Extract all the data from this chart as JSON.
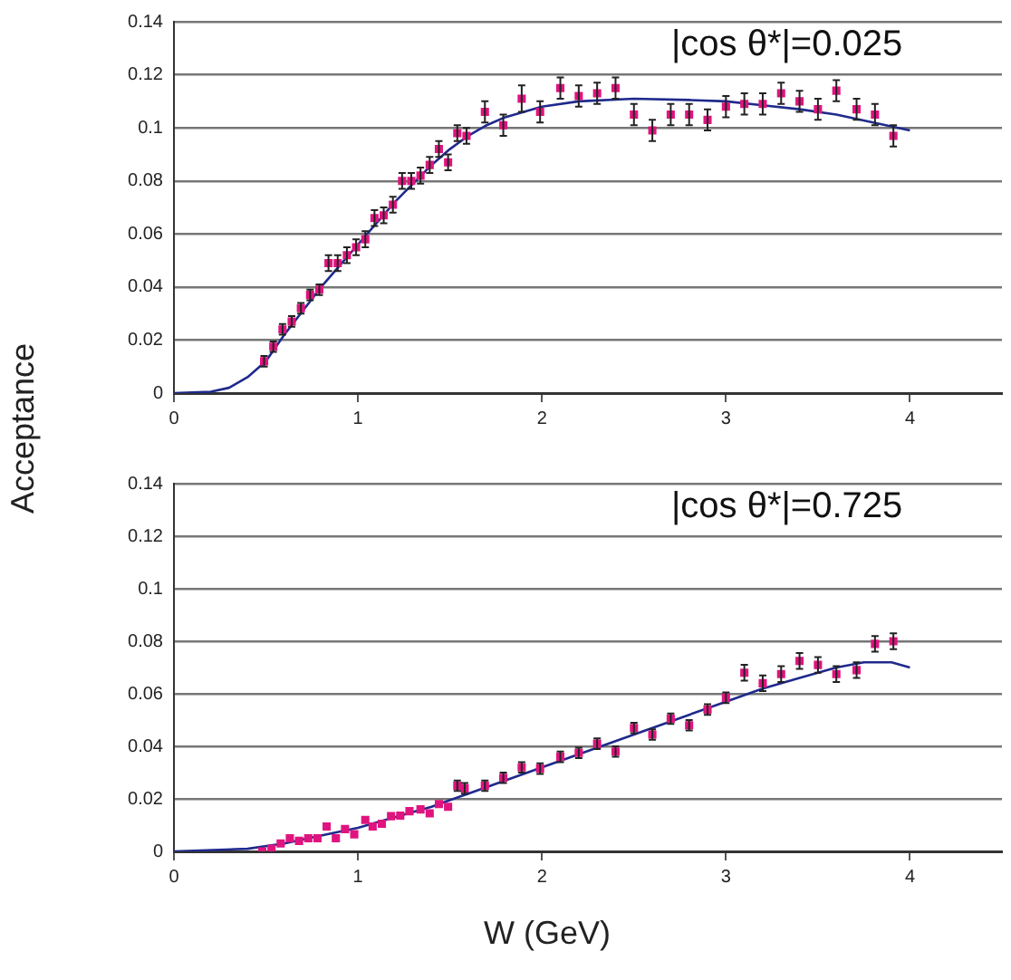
{
  "chart_data": [
    {
      "type": "scatter",
      "ylabel": "Acceptance",
      "annotations": [
        "|cos θ*|=0.025"
      ],
      "xlim": [
        0,
        4.5
      ],
      "xticks": [
        0,
        1,
        2,
        3,
        4
      ],
      "ylim": [
        0,
        0.14
      ],
      "yticks": [
        0,
        0.02,
        0.04,
        0.06,
        0.08,
        0.1,
        0.12,
        0.14
      ],
      "grid": "y",
      "legend": false,
      "marker": "square",
      "series": [
        {
          "color": "#e0147f",
          "x": [
            0.49,
            0.54,
            0.59,
            0.64,
            0.69,
            0.74,
            0.79,
            0.84,
            0.89,
            0.94,
            0.99,
            1.04,
            1.09,
            1.14,
            1.19,
            1.24,
            1.29,
            1.34,
            1.39,
            1.44,
            1.49,
            1.54,
            1.59,
            1.69,
            1.79,
            1.89,
            1.99,
            2.1,
            2.2,
            2.3,
            2.4,
            2.5,
            2.6,
            2.7,
            2.8,
            2.9,
            3.0,
            3.1,
            3.2,
            3.3,
            3.4,
            3.5,
            3.6,
            3.71,
            3.81,
            3.91
          ],
          "values": [
            0.012,
            0.0175,
            0.024,
            0.027,
            0.032,
            0.037,
            0.039,
            0.049,
            0.049,
            0.052,
            0.055,
            0.058,
            0.066,
            0.067,
            0.071,
            0.08,
            0.08,
            0.082,
            0.086,
            0.092,
            0.087,
            0.098,
            0.097,
            0.106,
            0.101,
            0.111,
            0.106,
            0.115,
            0.112,
            0.113,
            0.115,
            0.105,
            0.099,
            0.105,
            0.105,
            0.103,
            0.108,
            0.109,
            0.109,
            0.113,
            0.11,
            0.107,
            0.114,
            0.107,
            0.105,
            0.097
          ],
          "errors": [
            0.002,
            0.002,
            0.002,
            0.002,
            0.002,
            0.002,
            0.002,
            0.003,
            0.003,
            0.003,
            0.003,
            0.003,
            0.003,
            0.003,
            0.003,
            0.003,
            0.003,
            0.003,
            0.003,
            0.003,
            0.003,
            0.003,
            0.003,
            0.004,
            0.004,
            0.005,
            0.004,
            0.004,
            0.004,
            0.004,
            0.004,
            0.004,
            0.004,
            0.004,
            0.004,
            0.004,
            0.004,
            0.004,
            0.004,
            0.004,
            0.004,
            0.004,
            0.004,
            0.004,
            0.004,
            0.004
          ]
        },
        {
          "type": "line",
          "color": "#1f2a8c",
          "marker": "none",
          "line_style": "solid",
          "x": [
            0,
            0.2,
            0.3,
            0.4,
            0.5,
            0.6,
            0.7,
            0.8,
            0.9,
            1.0,
            1.1,
            1.2,
            1.3,
            1.4,
            1.5,
            1.6,
            1.7,
            1.8,
            2.0,
            2.2,
            2.5,
            2.8,
            3.0,
            3.2,
            3.4,
            3.6,
            3.8,
            4.0
          ],
          "values": [
            0,
            0.0005,
            0.002,
            0.006,
            0.012,
            0.022,
            0.031,
            0.04,
            0.048,
            0.056,
            0.064,
            0.072,
            0.079,
            0.086,
            0.092,
            0.097,
            0.101,
            0.104,
            0.108,
            0.11,
            0.111,
            0.1105,
            0.11,
            0.1085,
            0.107,
            0.105,
            0.102,
            0.099
          ]
        }
      ]
    },
    {
      "type": "scatter",
      "xlabel": "W (GeV)",
      "annotations": [
        "|cos θ*|=0.725"
      ],
      "xlim": [
        0,
        4.5
      ],
      "xticks": [
        0,
        1,
        2,
        3,
        4
      ],
      "ylim": [
        0,
        0.14
      ],
      "yticks": [
        0,
        0.02,
        0.04,
        0.06,
        0.08,
        0.1,
        0.12,
        0.14
      ],
      "grid": "y",
      "legend": false,
      "marker": "square",
      "series": [
        {
          "color": "#e0147f",
          "x": [
            0.48,
            0.53,
            0.58,
            0.63,
            0.68,
            0.73,
            0.78,
            0.83,
            0.88,
            0.93,
            0.98,
            1.04,
            1.08,
            1.13,
            1.18,
            1.23,
            1.28,
            1.34,
            1.39,
            1.44,
            1.49,
            1.54,
            1.58,
            1.69,
            1.79,
            1.89,
            1.99,
            2.1,
            2.2,
            2.3,
            2.4,
            2.5,
            2.6,
            2.7,
            2.8,
            2.9,
            3.0,
            3.1,
            3.2,
            3.3,
            3.4,
            3.5,
            3.6,
            3.71,
            3.81,
            3.91
          ],
          "values": [
            0.0,
            0.001,
            0.003,
            0.005,
            0.004,
            0.005,
            0.005,
            0.0095,
            0.005,
            0.0085,
            0.0065,
            0.012,
            0.0095,
            0.0105,
            0.0134,
            0.0136,
            0.0153,
            0.016,
            0.0145,
            0.018,
            0.017,
            0.025,
            0.024,
            0.025,
            0.028,
            0.032,
            0.0315,
            0.036,
            0.0375,
            0.041,
            0.038,
            0.047,
            0.0445,
            0.0505,
            0.048,
            0.054,
            0.0585,
            0.068,
            0.064,
            0.0675,
            0.0725,
            0.071,
            0.0675,
            0.069,
            0.079,
            0.08
          ],
          "errors": [
            null,
            null,
            null,
            null,
            null,
            null,
            null,
            null,
            null,
            null,
            null,
            null,
            null,
            null,
            null,
            null,
            null,
            null,
            null,
            null,
            null,
            0.002,
            0.002,
            0.002,
            0.002,
            0.002,
            0.002,
            0.002,
            0.002,
            0.002,
            0.002,
            0.002,
            0.002,
            0.002,
            0.002,
            0.002,
            0.002,
            0.003,
            0.003,
            0.003,
            0.003,
            0.003,
            0.003,
            0.003,
            0.003,
            0.003
          ]
        },
        {
          "type": "line",
          "color": "#1f2a8c",
          "marker": "none",
          "line_style": "solid",
          "x": [
            0,
            0.4,
            0.6,
            0.8,
            1.0,
            1.2,
            1.4,
            1.6,
            1.8,
            2.0,
            2.2,
            2.4,
            2.6,
            2.8,
            3.0,
            3.2,
            3.4,
            3.6,
            3.75,
            3.9,
            4.0
          ],
          "values": [
            0,
            0.001,
            0.003,
            0.006,
            0.009,
            0.013,
            0.017,
            0.022,
            0.027,
            0.032,
            0.037,
            0.042,
            0.047,
            0.052,
            0.057,
            0.062,
            0.066,
            0.07,
            0.072,
            0.072,
            0.07
          ]
        }
      ]
    }
  ]
}
